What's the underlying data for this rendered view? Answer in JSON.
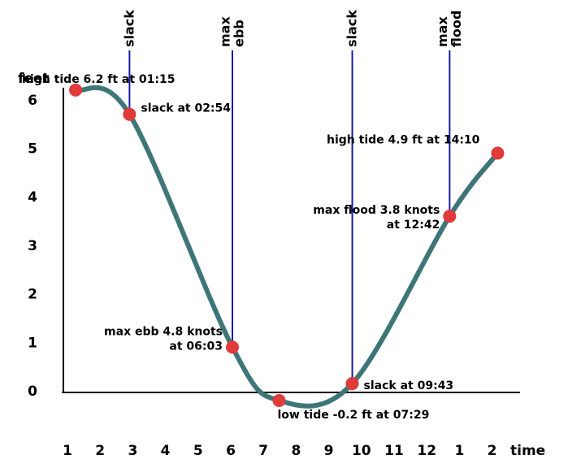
{
  "chart_data": {
    "type": "line",
    "ylabel": "feet",
    "xlabel": "time",
    "x_tick_labels": [
      "1",
      "2",
      "3",
      "4",
      "5",
      "6",
      "7",
      "8",
      "9",
      "10",
      "11",
      "12",
      "1",
      "2"
    ],
    "y_ticks": [
      0,
      1,
      2,
      3,
      4,
      5,
      6
    ],
    "ylim": [
      -0.4,
      6.5
    ],
    "xlim": [
      1,
      14.5
    ],
    "grid": false,
    "colors": {
      "curve": "#3e7678",
      "point": "#e03a3a",
      "markers": "#1a1aa8",
      "axis": "#000000"
    },
    "series": [
      {
        "points": [
          {
            "x": 1.25,
            "y": 6.2
          },
          {
            "x": 2.9,
            "y": 5.7
          },
          {
            "x": 6.05,
            "y": 0.9
          },
          {
            "x": 7.48,
            "y": -0.2
          },
          {
            "x": 9.72,
            "y": 0.15
          },
          {
            "x": 12.7,
            "y": 3.6
          },
          {
            "x": 14.17,
            "y": 4.9
          }
        ]
      }
    ],
    "point_labels": [
      {
        "lines": [
          "high tide 6.2 ft at 01:15"
        ]
      },
      {
        "lines": [
          "slack at 02:54"
        ]
      },
      {
        "lines": [
          "max ebb 4.8 knots",
          "at 06:03"
        ]
      },
      {
        "lines": [
          "low tide -0.2 ft at 07:29"
        ]
      },
      {
        "lines": [
          "slack at 09:43"
        ]
      },
      {
        "lines": [
          "max flood 3.8 knots",
          "at 12:42"
        ]
      },
      {
        "lines": [
          "high tide 4.9 ft at 14:10"
        ]
      }
    ],
    "vertical_markers": [
      {
        "x": 2.9,
        "y": 5.7,
        "label_lines": [
          "slack"
        ]
      },
      {
        "x": 6.05,
        "y": 0.9,
        "label_lines": [
          "max",
          "ebb"
        ]
      },
      {
        "x": 9.72,
        "y": 0.15,
        "label_lines": [
          "slack"
        ]
      },
      {
        "x": 12.7,
        "y": 3.6,
        "label_lines": [
          "max",
          "flood"
        ]
      }
    ]
  }
}
